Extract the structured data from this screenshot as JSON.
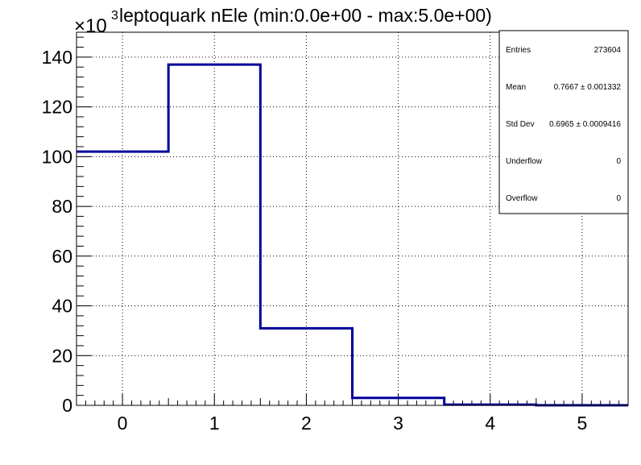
{
  "chart_data": {
    "type": "histogram",
    "title": "leptoquark nEle (min:0.0e+00 - max:5.0e+00)",
    "y_multiplier_label": "×10",
    "y_multiplier_exp": "3",
    "xlim": [
      -0.5,
      5.5
    ],
    "ylim": [
      0,
      150
    ],
    "x_ticks": [
      0,
      1,
      2,
      3,
      4,
      5
    ],
    "y_ticks": [
      0,
      20,
      40,
      60,
      80,
      100,
      120,
      140
    ],
    "grid": true,
    "bins": [
      {
        "low": -0.5,
        "high": 0.5,
        "value": 102
      },
      {
        "low": 0.5,
        "high": 1.5,
        "value": 137
      },
      {
        "low": 1.5,
        "high": 2.5,
        "value": 31
      },
      {
        "low": 2.5,
        "high": 3.5,
        "value": 3
      },
      {
        "low": 3.5,
        "high": 4.5,
        "value": 0.3
      },
      {
        "low": 4.5,
        "high": 5.5,
        "value": 0.05
      }
    ],
    "line_color": "#000099",
    "stats": [
      {
        "label": "Entries",
        "value": "273604"
      },
      {
        "label": "Mean",
        "value": "0.7667 ± 0.001332"
      },
      {
        "label": "Std Dev",
        "value": "0.6965 ± 0.0009416"
      },
      {
        "label": "Underflow",
        "value": "0"
      },
      {
        "label": "Overflow",
        "value": "0"
      }
    ],
    "stats_placement": "top-right"
  }
}
